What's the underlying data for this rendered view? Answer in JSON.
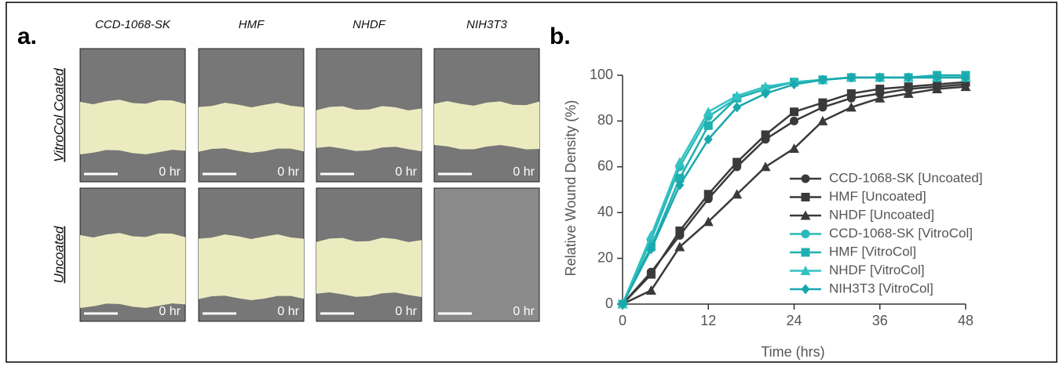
{
  "panel_a": {
    "label": "a.",
    "columns": [
      "CCD-1068-SK",
      "HMF",
      "NHDF",
      "NIH3T3"
    ],
    "rows": [
      "VitroCol Coated",
      "Uncoated"
    ],
    "timestamp": "0 hr"
  },
  "chart_data": {
    "type": "line",
    "label": "b.",
    "x_label": "Time (hrs)",
    "y_label": "Relative Wound Density (%)",
    "x": [
      0,
      4,
      8,
      12,
      16,
      20,
      24,
      28,
      32,
      36,
      40,
      44,
      48
    ],
    "series": [
      {
        "name": "CCD-1068-SK [Uncoated]",
        "color": "#3a3a3a",
        "marker": "circle",
        "values": [
          0,
          14,
          30,
          46,
          60,
          72,
          80,
          86,
          90,
          92,
          94,
          95,
          96
        ]
      },
      {
        "name": "HMF [Uncoated]",
        "color": "#3a3a3a",
        "marker": "square",
        "values": [
          0,
          13,
          32,
          48,
          62,
          74,
          84,
          88,
          92,
          94,
          95,
          96,
          97
        ]
      },
      {
        "name": "NHDF [Uncoated]",
        "color": "#3a3a3a",
        "marker": "triangle",
        "values": [
          0,
          6,
          25,
          36,
          48,
          60,
          68,
          80,
          86,
          90,
          92,
          94,
          95
        ]
      },
      {
        "name": "CCD-1068-SK [VitroCol]",
        "color": "#2ab8b8",
        "marker": "circle",
        "values": [
          0,
          28,
          60,
          82,
          90,
          94,
          97,
          98,
          99,
          99,
          99,
          99,
          99
        ]
      },
      {
        "name": "HMF [VitroCol]",
        "color": "#1fb0b0",
        "marker": "square",
        "values": [
          0,
          25,
          55,
          78,
          90,
          94,
          97,
          98,
          99,
          99,
          99,
          100,
          100
        ]
      },
      {
        "name": "NHDF [VitroCol]",
        "color": "#33c2c2",
        "marker": "triangle",
        "values": [
          0,
          30,
          62,
          84,
          91,
          95,
          97,
          98,
          99,
          99,
          99,
          99,
          99
        ]
      },
      {
        "name": "NIH3T3 [VitroCol]",
        "color": "#18a8ae",
        "marker": "diamond",
        "values": [
          0,
          24,
          52,
          72,
          86,
          92,
          96,
          98,
          99,
          99,
          99,
          99,
          99
        ]
      }
    ],
    "xlim": [
      0,
      48
    ],
    "xticks": [
      0,
      12,
      24,
      36,
      48
    ],
    "ylim": [
      0,
      100
    ],
    "yticks": [
      0,
      20,
      40,
      60,
      80,
      100
    ]
  }
}
